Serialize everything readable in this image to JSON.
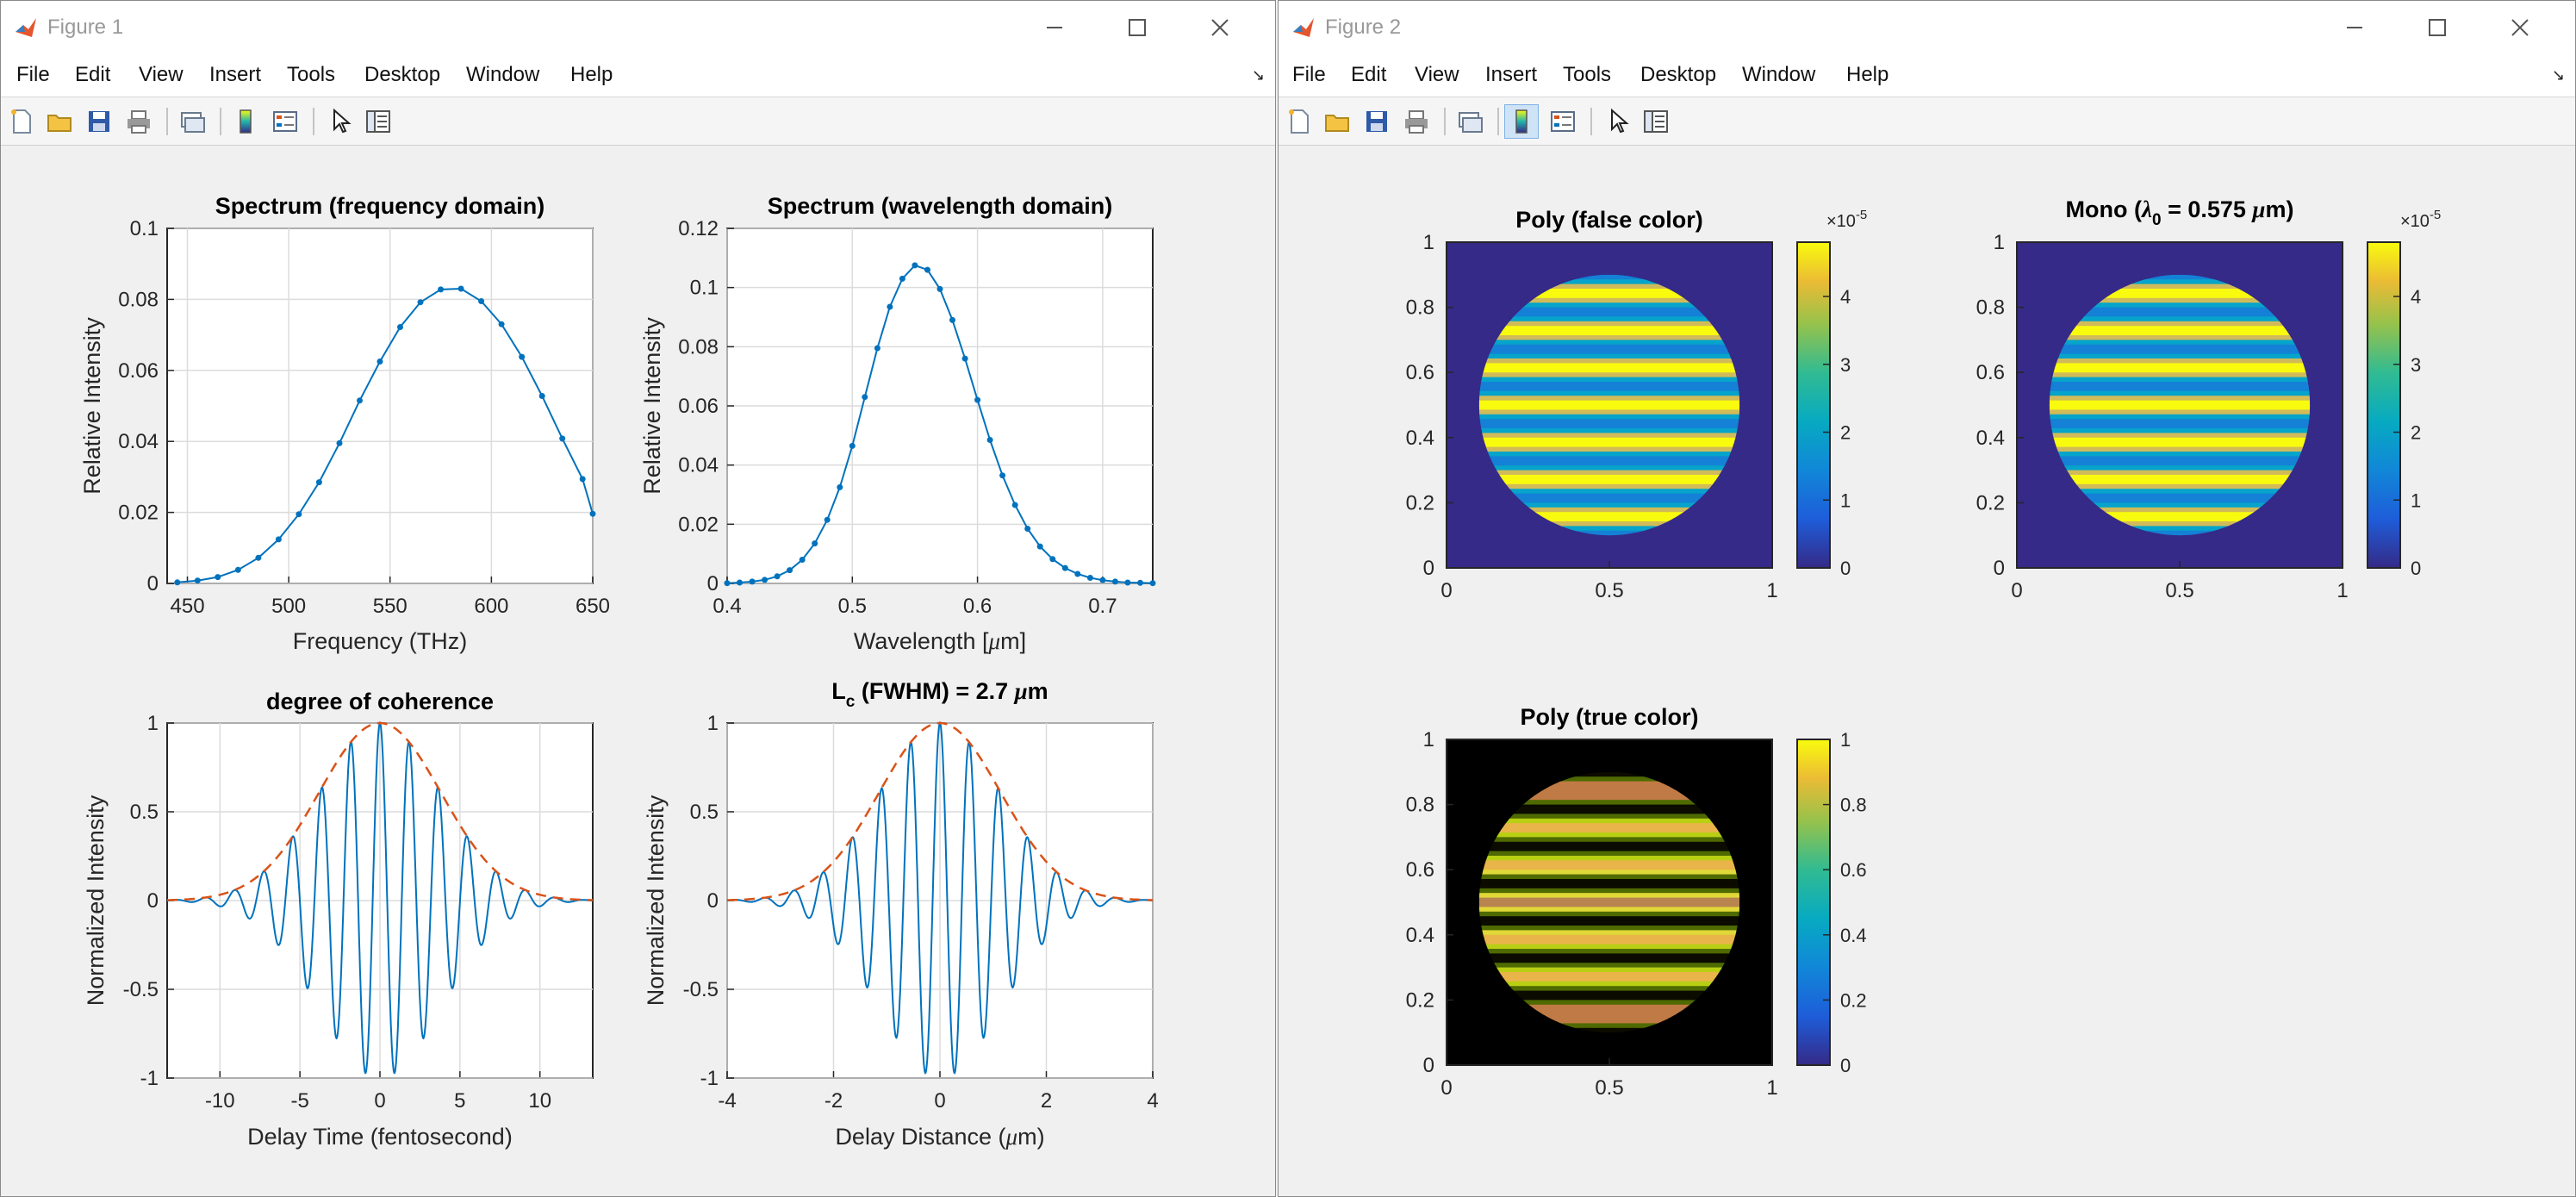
{
  "figure1": {
    "title": "Figure 1",
    "menus": [
      "File",
      "Edit",
      "View",
      "Insert",
      "Tools",
      "Desktop",
      "Window",
      "Help"
    ],
    "toolbar": [
      "new-figure-icon",
      "open-file-icon",
      "save-icon",
      "print-icon",
      "link-plot-icon",
      "insert-colorbar-icon",
      "insert-legend-icon",
      "edit-plot-icon",
      "property-inspector-icon"
    ],
    "charts": [
      {
        "title": "Spectrum (frequency domain)",
        "xlabel": "Frequency (THz)",
        "ylabel": "Relative Intensity",
        "xticks": [
          "450",
          "500",
          "550",
          "600",
          "650"
        ],
        "yticks": [
          "0",
          "0.02",
          "0.04",
          "0.06",
          "0.08",
          "0.1"
        ]
      },
      {
        "title": "Spectrum (wavelength domain)",
        "xlabel_main": "Wavelength [",
        "xlabel_mu": "μ",
        "xlabel_unit": "m]",
        "ylabel": "Relative Intensity",
        "xticks": [
          "0.4",
          "0.5",
          "0.6",
          "0.7"
        ],
        "yticks": [
          "0",
          "0.02",
          "0.04",
          "0.06",
          "0.08",
          "0.1",
          "0.12"
        ]
      },
      {
        "title": "degree of coherence",
        "xlabel": "Delay Time (fentosecond)",
        "ylabel": "Normalized Intensity",
        "xticks": [
          "-10",
          "-5",
          "0",
          "5",
          "10"
        ],
        "yticks": [
          "-1",
          "-0.5",
          "0",
          "0.5",
          "1"
        ]
      },
      {
        "title_L": "L",
        "title_sub": "c",
        "title_rest": " (FWHM) = 2.7 ",
        "title_mu": "μ",
        "title_unit": "m",
        "xlabel_main": "Delay Distance (",
        "xlabel_mu": "μ",
        "xlabel_unit": "m)",
        "ylabel": "Normalized Intensity",
        "xticks": [
          "-4",
          "-2",
          "0",
          "2",
          "4"
        ],
        "yticks": [
          "-1",
          "-0.5",
          "0",
          "0.5",
          "1"
        ]
      }
    ]
  },
  "figure2": {
    "title": "Figure 2",
    "menus": [
      "File",
      "Edit",
      "View",
      "Insert",
      "Tools",
      "Desktop",
      "Window",
      "Help"
    ],
    "toolbar": [
      "new-figure-icon",
      "open-file-icon",
      "save-icon",
      "print-icon",
      "link-plot-icon",
      "insert-colorbar-icon",
      "insert-legend-icon",
      "edit-plot-icon",
      "property-inspector-icon"
    ],
    "images": [
      {
        "title": "Poly (false color)",
        "xticks": [
          "0",
          "0.5",
          "1"
        ],
        "yticks": [
          "0",
          "0.2",
          "0.4",
          "0.6",
          "0.8",
          "1"
        ],
        "cbar_ticks": [
          "0",
          "1",
          "2",
          "3",
          "4"
        ],
        "cbar_exp_base": "×10",
        "cbar_exp": "-5"
      },
      {
        "title_a": "Mono (",
        "title_lambda": "λ",
        "title_sub": "0",
        "title_b": " = 0.575 ",
        "title_mu": "μ",
        "title_c": "m)",
        "xticks": [
          "0",
          "0.5",
          "1"
        ],
        "yticks": [
          "0",
          "0.2",
          "0.4",
          "0.6",
          "0.8",
          "1"
        ],
        "cbar_ticks": [
          "0",
          "1",
          "2",
          "3",
          "4"
        ],
        "cbar_exp_base": "×10",
        "cbar_exp": "-5"
      },
      {
        "title": "Poly (true color)",
        "xticks": [
          "0",
          "0.5",
          "1"
        ],
        "yticks": [
          "0",
          "0.2",
          "0.4",
          "0.6",
          "0.8",
          "1"
        ],
        "cbar_ticks": [
          "0",
          "0.2",
          "0.4",
          "0.6",
          "0.8",
          "1"
        ]
      }
    ]
  },
  "colors": {
    "series": "#0072bd",
    "envelope": "#d95319",
    "parula_low": "#352a87",
    "parula_high": "#f9fb0e"
  },
  "chart_data": [
    {
      "type": "line",
      "title": "Spectrum (frequency domain)",
      "xlabel": "Frequency (THz)",
      "ylabel": "Relative Intensity",
      "xlim": [
        440,
        650
      ],
      "ylim": [
        0,
        0.1
      ],
      "grid": true,
      "series": [
        {
          "x": [
            445,
            455,
            465,
            475,
            485,
            495,
            505,
            515,
            525,
            535,
            545,
            555,
            565,
            575,
            585,
            595,
            605,
            615,
            625,
            635,
            645,
            650
          ],
          "values": [
            0.0003,
            0.0008,
            0.0018,
            0.0038,
            0.0072,
            0.0124,
            0.0195,
            0.0285,
            0.0395,
            0.0515,
            0.0625,
            0.0722,
            0.0792,
            0.0828,
            0.083,
            0.0795,
            0.073,
            0.0638,
            0.0528,
            0.0408,
            0.0294,
            0.0196
          ]
        }
      ]
    },
    {
      "type": "line",
      "title": "Spectrum (wavelength domain)",
      "ylabel": "Relative Intensity",
      "xlim": [
        0.4,
        0.74
      ],
      "ylim": [
        0,
        0.12
      ],
      "grid": true,
      "series": [
        {
          "x": [
            0.4,
            0.41,
            0.42,
            0.43,
            0.44,
            0.45,
            0.46,
            0.47,
            0.48,
            0.49,
            0.5,
            0.51,
            0.52,
            0.53,
            0.54,
            0.55,
            0.56,
            0.57,
            0.58,
            0.59,
            0.6,
            0.61,
            0.62,
            0.63,
            0.64,
            0.65,
            0.66,
            0.67,
            0.68,
            0.69,
            0.7,
            0.71,
            0.72,
            0.73,
            0.74
          ],
          "values": [
            0.0001,
            0.0003,
            0.0006,
            0.0012,
            0.0024,
            0.0045,
            0.008,
            0.0135,
            0.0215,
            0.0325,
            0.0465,
            0.063,
            0.0795,
            0.0935,
            0.103,
            0.1075,
            0.106,
            0.0995,
            0.089,
            0.076,
            0.062,
            0.0485,
            0.0365,
            0.0265,
            0.0185,
            0.0125,
            0.0082,
            0.0052,
            0.0032,
            0.0019,
            0.0011,
            0.0006,
            0.0003,
            0.0002,
            0.0001
          ]
        }
      ]
    },
    {
      "type": "line",
      "title": "degree of coherence",
      "xlabel": "Delay Time (fentosecond)",
      "ylabel": "Normalized Intensity",
      "xlim": [
        -13.3,
        13.3
      ],
      "ylim": [
        -1,
        1
      ],
      "grid": true,
      "series": [
        {
          "name": "",
          "model": "cos",
          "center": 0,
          "fwhm": 9.0,
          "period": 1.82,
          "xrange": [
            -13.3,
            13.3
          ]
        },
        {
          "name": "",
          "model": "envelope",
          "center": 0,
          "fwhm": 9.0,
          "xrange": [
            -13.3,
            13.3
          ]
        }
      ]
    },
    {
      "type": "line",
      "ylabel": "Normalized Intensity",
      "xlim": [
        -4,
        4
      ],
      "ylim": [
        -1,
        1
      ],
      "grid": true,
      "series": [
        {
          "name": "",
          "model": "cos",
          "center": 0,
          "fwhm": 2.7,
          "period": 0.55,
          "xrange": [
            -4,
            4
          ]
        },
        {
          "name": "",
          "model": "envelope",
          "center": 0,
          "fwhm": 2.7,
          "xrange": [
            -4,
            4
          ]
        }
      ]
    },
    {
      "type": "heatmap",
      "title": "Poly (false color)",
      "xlim": [
        0,
        1
      ],
      "ylim": [
        0,
        1
      ],
      "clim": [
        0,
        4.8e-05
      ],
      "circle": {
        "cx": 0.5,
        "cy": 0.5,
        "r": 0.4
      },
      "fringes": 7,
      "colormap": "parula"
    },
    {
      "type": "heatmap",
      "xlim": [
        0,
        1
      ],
      "ylim": [
        0,
        1
      ],
      "clim": [
        0,
        4.8e-05
      ],
      "circle": {
        "cx": 0.5,
        "cy": 0.5,
        "r": 0.4
      },
      "fringes": 7,
      "colormap": "parula"
    },
    {
      "type": "heatmap",
      "title": "Poly (true color)",
      "xlim": [
        0,
        1
      ],
      "ylim": [
        0,
        1
      ],
      "clim": [
        0,
        1
      ],
      "circle": {
        "cx": 0.5,
        "cy": 0.5,
        "r": 0.4
      },
      "fringes": 7,
      "colormap": "truecolor"
    }
  ]
}
